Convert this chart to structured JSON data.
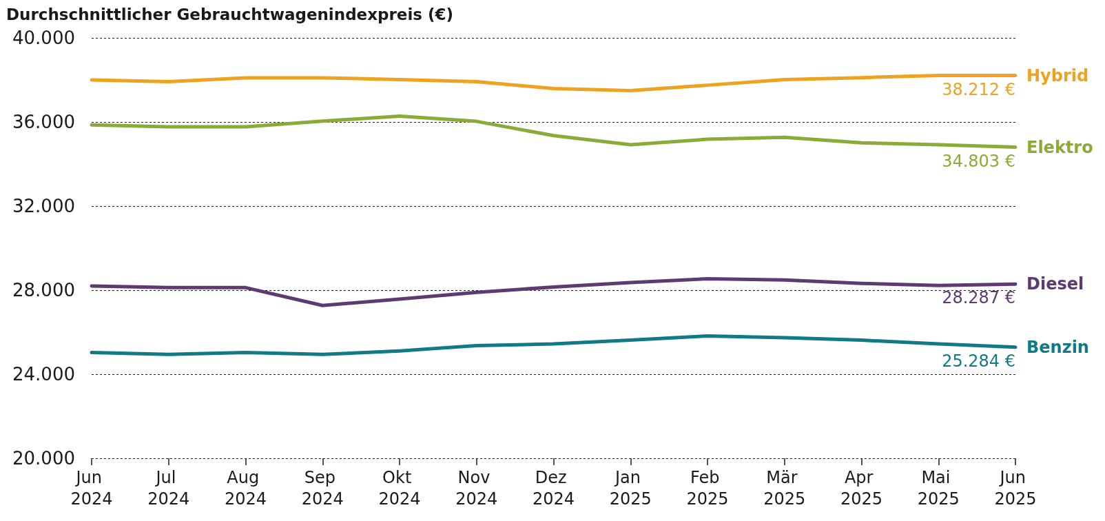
{
  "chart_data": {
    "type": "line",
    "title": "Durchschnittlicher Gebrauchtwagenindexpreis (€)",
    "categories": [
      "Jun 2024",
      "Jul 2024",
      "Aug 2024",
      "Sep 2024",
      "Okt 2024",
      "Nov 2024",
      "Dez 2024",
      "Jan 2025",
      "Feb 2025",
      "Mär 2025",
      "Apr 2025",
      "Mai 2025",
      "Jun 2025"
    ],
    "series": [
      {
        "name": "Hybrid",
        "color": "#eea320",
        "values": [
          38000,
          37920,
          38100,
          38100,
          38020,
          37920,
          37590,
          37490,
          37750,
          38020,
          38110,
          38210,
          38212
        ],
        "value_labels": [
          null,
          null,
          null,
          null,
          null,
          null,
          null,
          null,
          null,
          null,
          null,
          null,
          "38.212 €"
        ]
      },
      {
        "name": "Elektro",
        "color": "#8aab38",
        "values": [
          35860,
          35770,
          35770,
          36040,
          36280,
          36030,
          35350,
          34920,
          35180,
          35270,
          35010,
          34920,
          34803
        ],
        "value_labels": [
          null,
          null,
          null,
          null,
          null,
          null,
          null,
          null,
          null,
          null,
          null,
          null,
          "34.803 €"
        ]
      },
      {
        "name": "Diesel",
        "color": "#5d3b71",
        "values": [
          28200,
          28120,
          28120,
          27270,
          27570,
          27890,
          28150,
          28360,
          28540,
          28480,
          28320,
          28220,
          28287
        ],
        "value_labels": [
          null,
          null,
          null,
          null,
          null,
          null,
          null,
          null,
          null,
          null,
          null,
          null,
          "28.287 €"
        ]
      },
      {
        "name": "Benzin",
        "color": "#107a87",
        "values": [
          25030,
          24940,
          25030,
          24940,
          25110,
          25360,
          25440,
          25620,
          25820,
          25740,
          25620,
          25440,
          25284
        ],
        "value_labels": [
          null,
          null,
          null,
          null,
          null,
          null,
          null,
          null,
          null,
          null,
          null,
          null,
          "25.284 €"
        ]
      }
    ],
    "ylim": [
      20000,
      40000
    ],
    "yticks": [
      {
        "value": 20000,
        "label": "20.000"
      },
      {
        "value": 24000,
        "label": "24.000"
      },
      {
        "value": 28000,
        "label": "28.000"
      },
      {
        "value": 32000,
        "label": "32.000"
      },
      {
        "value": 36000,
        "label": "36.000"
      },
      {
        "value": 40000,
        "label": "40.000"
      }
    ],
    "grid": "y",
    "marker": "none"
  }
}
